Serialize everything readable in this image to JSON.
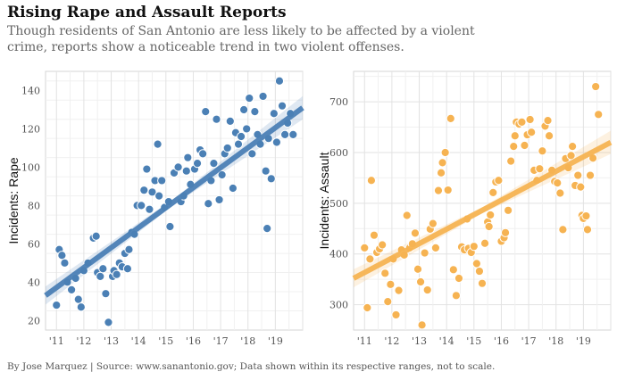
{
  "header": {
    "title": "Rising Rape and Assault Reports",
    "subtitle": "Though residents of San Antonio are less likely to be affected by a violent crime, reports show a noticeable trend in two violent offenses."
  },
  "footer": {
    "credit": "By Jose Marquez | Source: www.sanantonio.gov; Data shown within its respective ranges, not to scale."
  },
  "chart_data": [
    {
      "type": "scatter",
      "ylabel": "Incidents: Rape",
      "color": "#4b80b5",
      "xlim": [
        2010.6,
        2020.0
      ],
      "ylim": [
        15,
        150
      ],
      "x_ticks": [
        2011,
        2012,
        2013,
        2014,
        2015,
        2016,
        2017,
        2018,
        2019
      ],
      "x_tick_labels": [
        "'11",
        "'12",
        "'13",
        "'14",
        "'15",
        "'16",
        "'17",
        "'18",
        "'19"
      ],
      "y_ticks": [
        20,
        40,
        60,
        80,
        100,
        120,
        140
      ],
      "trend": {
        "x0": 2010.6,
        "y0": 33,
        "x1": 2020.0,
        "y1": 131
      },
      "points": [
        [
          2011.0,
          28
        ],
        [
          2011.1,
          57
        ],
        [
          2011.2,
          54
        ],
        [
          2011.3,
          50
        ],
        [
          2011.4,
          40
        ],
        [
          2011.55,
          36
        ],
        [
          2011.7,
          42
        ],
        [
          2011.8,
          31
        ],
        [
          2011.9,
          27
        ],
        [
          2012.0,
          46
        ],
        [
          2012.15,
          50
        ],
        [
          2012.35,
          63
        ],
        [
          2012.45,
          64
        ],
        [
          2012.5,
          45
        ],
        [
          2012.6,
          43
        ],
        [
          2012.7,
          47
        ],
        [
          2012.8,
          34
        ],
        [
          2012.9,
          19
        ],
        [
          2013.05,
          43
        ],
        [
          2013.1,
          46
        ],
        [
          2013.2,
          44
        ],
        [
          2013.3,
          50
        ],
        [
          2013.4,
          48
        ],
        [
          2013.5,
          55
        ],
        [
          2013.6,
          47
        ],
        [
          2013.65,
          57
        ],
        [
          2013.75,
          66
        ],
        [
          2013.85,
          65
        ],
        [
          2013.95,
          80
        ],
        [
          2014.1,
          80
        ],
        [
          2014.2,
          88
        ],
        [
          2014.3,
          99
        ],
        [
          2014.4,
          78
        ],
        [
          2014.5,
          87
        ],
        [
          2014.6,
          93
        ],
        [
          2014.7,
          112
        ],
        [
          2014.75,
          85
        ],
        [
          2014.85,
          93
        ],
        [
          2014.95,
          79
        ],
        [
          2015.1,
          82
        ],
        [
          2015.15,
          69
        ],
        [
          2015.3,
          97
        ],
        [
          2015.45,
          100
        ],
        [
          2015.55,
          82
        ],
        [
          2015.65,
          85
        ],
        [
          2015.75,
          98
        ],
        [
          2015.8,
          105
        ],
        [
          2015.9,
          91
        ],
        [
          2016.05,
          99
        ],
        [
          2016.15,
          102
        ],
        [
          2016.25,
          109
        ],
        [
          2016.35,
          107
        ],
        [
          2016.45,
          129
        ],
        [
          2016.55,
          81
        ],
        [
          2016.65,
          93
        ],
        [
          2016.75,
          102
        ],
        [
          2016.85,
          125
        ],
        [
          2016.95,
          83
        ],
        [
          2017.05,
          96
        ],
        [
          2017.15,
          107
        ],
        [
          2017.25,
          110
        ],
        [
          2017.35,
          124
        ],
        [
          2017.45,
          89
        ],
        [
          2017.55,
          118
        ],
        [
          2017.65,
          112
        ],
        [
          2017.75,
          116
        ],
        [
          2017.85,
          130
        ],
        [
          2017.95,
          120
        ],
        [
          2018.05,
          136
        ],
        [
          2018.15,
          107
        ],
        [
          2018.25,
          129
        ],
        [
          2018.35,
          117
        ],
        [
          2018.45,
          112
        ],
        [
          2018.55,
          137
        ],
        [
          2018.65,
          98
        ],
        [
          2018.7,
          68
        ],
        [
          2018.75,
          115
        ],
        [
          2018.85,
          94
        ],
        [
          2018.95,
          128
        ],
        [
          2019.05,
          113
        ],
        [
          2019.15,
          145
        ],
        [
          2019.25,
          132
        ],
        [
          2019.35,
          117
        ],
        [
          2019.45,
          123
        ],
        [
          2019.55,
          128
        ],
        [
          2019.65,
          117
        ]
      ]
    },
    {
      "type": "scatter",
      "ylabel": "Incidents: Assault",
      "color": "#f6b352",
      "xlim": [
        2010.6,
        2020.0
      ],
      "ylim": [
        250,
        760
      ],
      "x_ticks": [
        2011,
        2012,
        2013,
        2014,
        2015,
        2016,
        2017,
        2018,
        2019
      ],
      "x_tick_labels": [
        "'11",
        "'12",
        "'13",
        "'14",
        "'15",
        "'16",
        "'17",
        "'18",
        "'19"
      ],
      "y_ticks": [
        300,
        400,
        500,
        600,
        700
      ],
      "trend": {
        "x0": 2010.6,
        "y0": 352,
        "x1": 2020.0,
        "y1": 620
      },
      "points": [
        [
          2011.0,
          412
        ],
        [
          2011.1,
          294
        ],
        [
          2011.2,
          390
        ],
        [
          2011.25,
          545
        ],
        [
          2011.35,
          437
        ],
        [
          2011.45,
          403
        ],
        [
          2011.55,
          410
        ],
        [
          2011.65,
          418
        ],
        [
          2011.75,
          362
        ],
        [
          2011.85,
          306
        ],
        [
          2011.95,
          340
        ],
        [
          2012.05,
          390
        ],
        [
          2012.15,
          280
        ],
        [
          2012.25,
          328
        ],
        [
          2012.35,
          408
        ],
        [
          2012.45,
          398
        ],
        [
          2012.55,
          476
        ],
        [
          2012.65,
          412
        ],
        [
          2012.75,
          420
        ],
        [
          2012.85,
          441
        ],
        [
          2012.95,
          370
        ],
        [
          2013.05,
          345
        ],
        [
          2013.1,
          260
        ],
        [
          2013.2,
          402
        ],
        [
          2013.3,
          329
        ],
        [
          2013.4,
          449
        ],
        [
          2013.5,
          460
        ],
        [
          2013.6,
          412
        ],
        [
          2013.7,
          525
        ],
        [
          2013.8,
          560
        ],
        [
          2013.85,
          580
        ],
        [
          2013.95,
          600
        ],
        [
          2014.05,
          526
        ],
        [
          2014.15,
          667
        ],
        [
          2014.25,
          369
        ],
        [
          2014.35,
          318
        ],
        [
          2014.45,
          352
        ],
        [
          2014.55,
          414
        ],
        [
          2014.65,
          408
        ],
        [
          2014.75,
          469
        ],
        [
          2014.8,
          411
        ],
        [
          2014.9,
          403
        ],
        [
          2015.0,
          415
        ],
        [
          2015.1,
          381
        ],
        [
          2015.2,
          366
        ],
        [
          2015.3,
          342
        ],
        [
          2015.4,
          421
        ],
        [
          2015.5,
          463
        ],
        [
          2015.55,
          454
        ],
        [
          2015.6,
          477
        ],
        [
          2015.7,
          521
        ],
        [
          2015.8,
          542
        ],
        [
          2015.9,
          545
        ],
        [
          2016.0,
          425
        ],
        [
          2016.1,
          432
        ],
        [
          2016.15,
          442
        ],
        [
          2016.25,
          486
        ],
        [
          2016.35,
          583
        ],
        [
          2016.45,
          612
        ],
        [
          2016.5,
          633
        ],
        [
          2016.55,
          660
        ],
        [
          2016.65,
          656
        ],
        [
          2016.75,
          660
        ],
        [
          2016.85,
          614
        ],
        [
          2016.95,
          635
        ],
        [
          2017.05,
          665
        ],
        [
          2017.1,
          640
        ],
        [
          2017.2,
          565
        ],
        [
          2017.3,
          545
        ],
        [
          2017.4,
          568
        ],
        [
          2017.5,
          603
        ],
        [
          2017.6,
          652
        ],
        [
          2017.7,
          663
        ],
        [
          2017.75,
          633
        ],
        [
          2017.85,
          565
        ],
        [
          2017.95,
          543
        ],
        [
          2018.05,
          540
        ],
        [
          2018.15,
          520
        ],
        [
          2018.25,
          448
        ],
        [
          2018.35,
          588
        ],
        [
          2018.45,
          570
        ],
        [
          2018.55,
          594
        ],
        [
          2018.6,
          612
        ],
        [
          2018.7,
          535
        ],
        [
          2018.8,
          555
        ],
        [
          2018.9,
          532
        ],
        [
          2018.95,
          476
        ],
        [
          2019.0,
          470
        ],
        [
          2019.1,
          475
        ],
        [
          2019.15,
          448
        ],
        [
          2019.25,
          555
        ],
        [
          2019.35,
          589
        ],
        [
          2019.45,
          730
        ],
        [
          2019.55,
          675
        ]
      ]
    }
  ]
}
